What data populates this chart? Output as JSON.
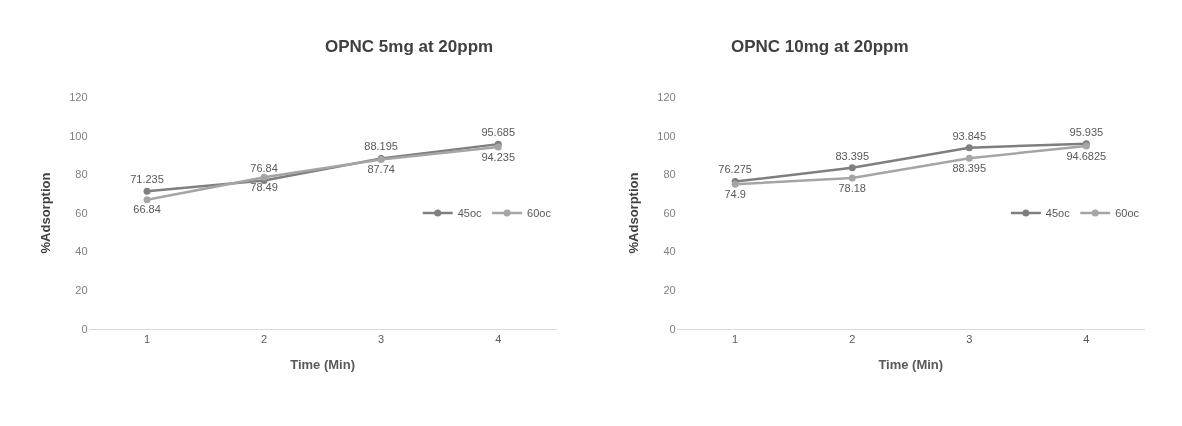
{
  "chart_data": [
    {
      "type": "line",
      "title": "OPNC 5mg at 20ppm",
      "xlabel": "Time (Min)",
      "ylabel": "%Adsorption",
      "categories": [
        "1",
        "2",
        "3",
        "4"
      ],
      "series": [
        {
          "name": "45oc",
          "color": "#7f7f7f",
          "values": [
            71.235,
            76.84,
            88.195,
            95.685
          ]
        },
        {
          "name": "60oc",
          "color": "#a5a5a5",
          "values": [
            66.84,
            78.49,
            87.74,
            94.235
          ]
        }
      ],
      "ylim": [
        0,
        120
      ],
      "yticks": [
        0,
        20,
        40,
        60,
        80,
        100,
        120
      ],
      "data_labels": true,
      "legend": "right",
      "marker": "circle",
      "grid": false
    },
    {
      "type": "line",
      "title": "OPNC 10mg at 20ppm",
      "xlabel": "Time (Min)",
      "ylabel": "%Adsorption",
      "categories": [
        "1",
        "2",
        "3",
        "4"
      ],
      "series": [
        {
          "name": "45oc",
          "color": "#7f7f7f",
          "values": [
            76.275,
            83.395,
            93.845,
            95.935
          ]
        },
        {
          "name": "60oc",
          "color": "#a5a5a5",
          "values": [
            74.9,
            78.18,
            88.395,
            94.6825
          ]
        }
      ],
      "ylim": [
        0,
        120
      ],
      "yticks": [
        0,
        20,
        40,
        60,
        80,
        100,
        120
      ],
      "data_labels": true,
      "legend": "right",
      "marker": "circle",
      "grid": false
    }
  ]
}
